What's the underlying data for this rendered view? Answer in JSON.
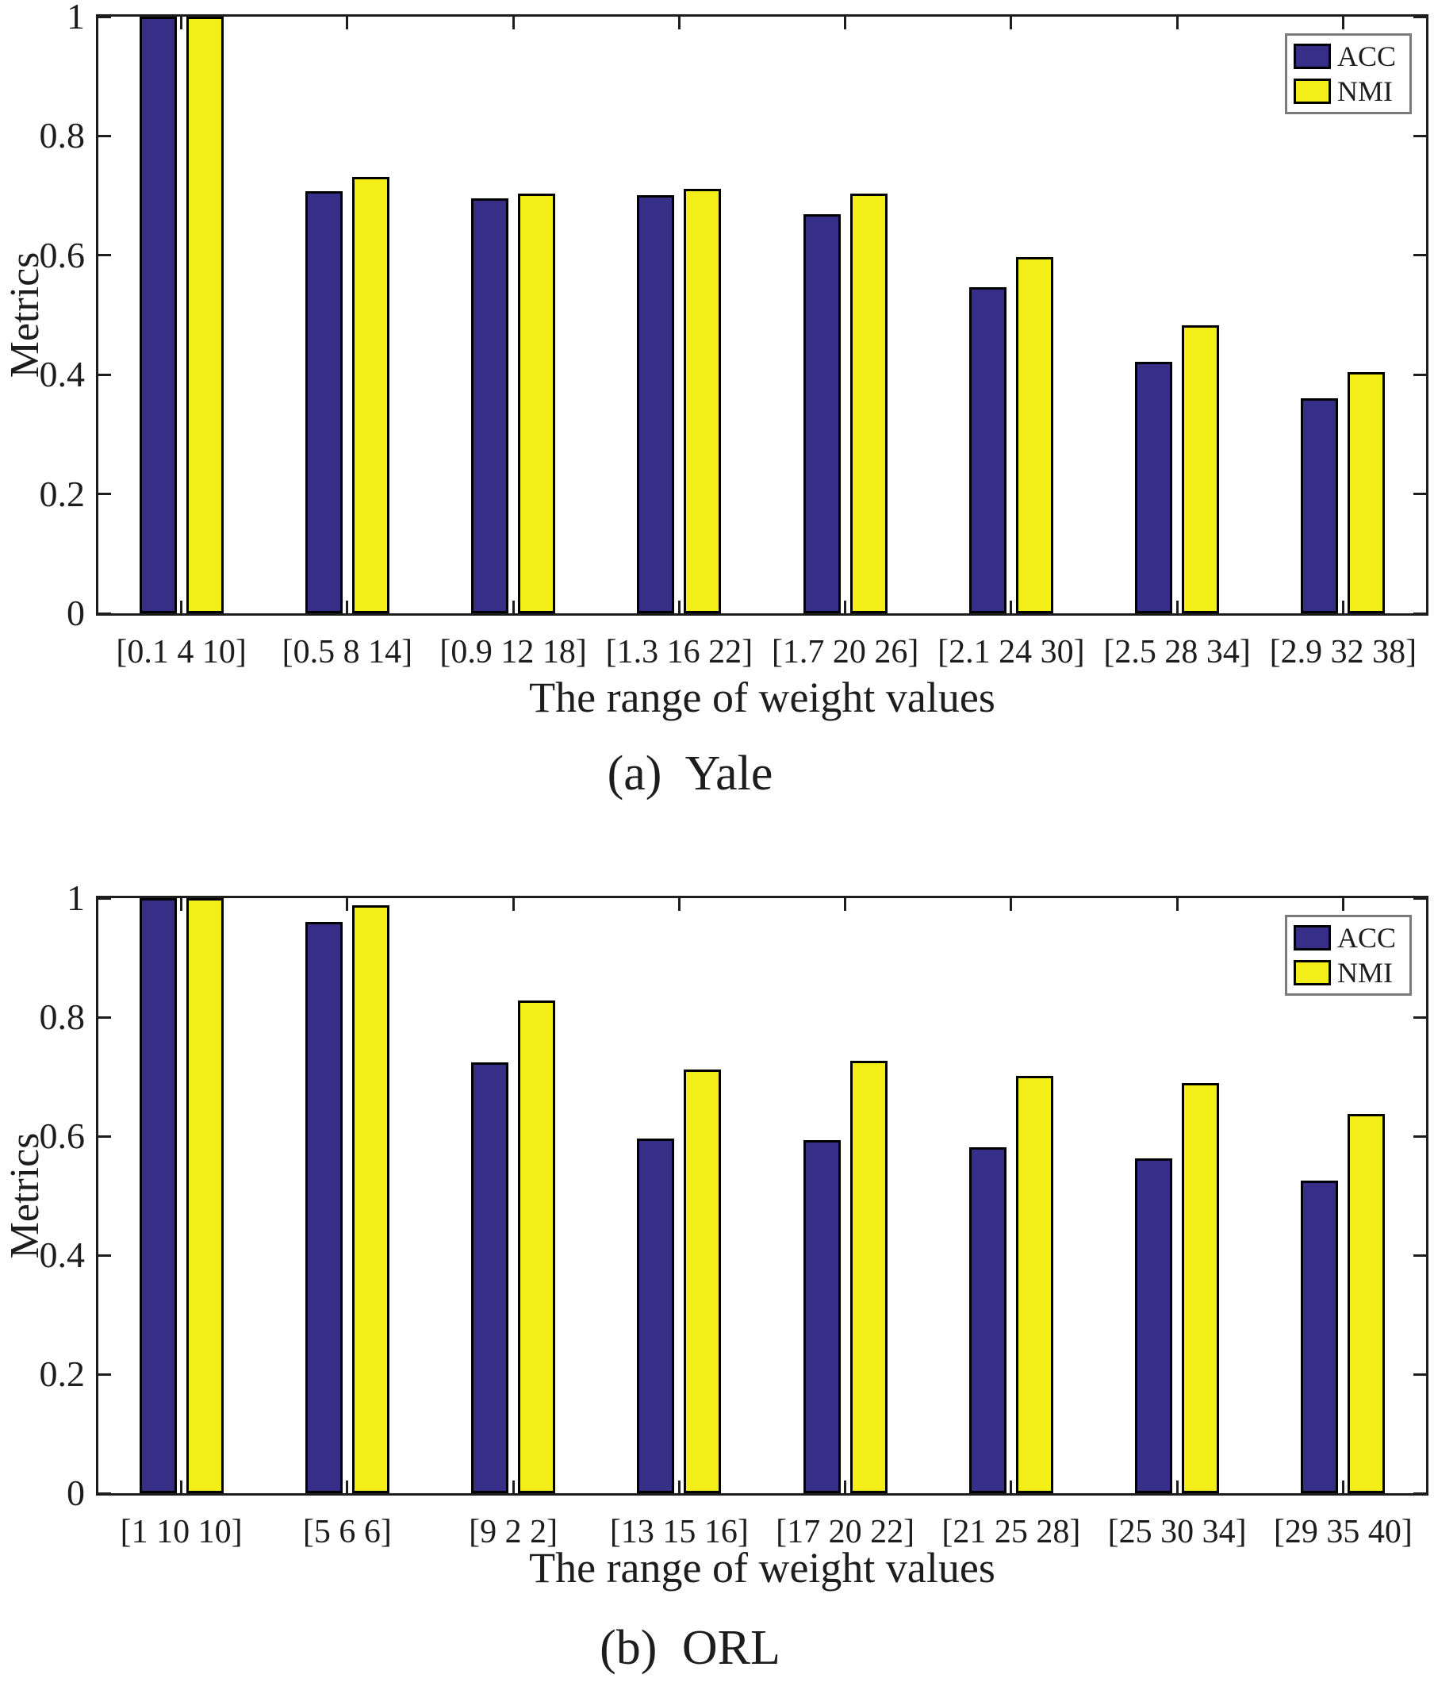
{
  "colors": {
    "acc": "#372F87",
    "nmi": "#F3EE18",
    "axis": "#1d1d1d",
    "bar_border": "#000000",
    "legend_border": "#7b7b7b",
    "background": "#ffffff"
  },
  "chart_data": [
    {
      "type": "bar",
      "title": "(a) Yale",
      "xlabel": "The range of weight values",
      "ylabel": "Metrics",
      "ylim": [
        0,
        1
      ],
      "yticks": [
        "0",
        "0.2",
        "0.4",
        "0.6",
        "0.8",
        "1"
      ],
      "grid": false,
      "legend_position": "top-right",
      "categories": [
        "[0.1 4 10]",
        "[0.5 8 14]",
        "[0.9 12 18]",
        "[1.3 16 22]",
        "[1.7 20 26]",
        "[2.1 24 30]",
        "[2.5 28 34]",
        "[2.9 32 38]"
      ],
      "series": [
        {
          "name": "ACC",
          "color": "#372F87",
          "values": [
            1.0,
            0.708,
            0.695,
            0.701,
            0.669,
            0.547,
            0.421,
            0.361
          ]
        },
        {
          "name": "NMI",
          "color": "#F3EE18",
          "values": [
            1.0,
            0.732,
            0.704,
            0.711,
            0.704,
            0.597,
            0.483,
            0.404
          ]
        }
      ]
    },
    {
      "type": "bar",
      "title": "(b) ORL",
      "xlabel": "The range of weight values",
      "ylabel": "Metrics",
      "ylim": [
        0,
        1
      ],
      "yticks": [
        "0",
        "0.2",
        "0.4",
        "0.6",
        "0.8",
        "1"
      ],
      "grid": false,
      "legend_position": "top-right",
      "categories": [
        "[1 10 10]",
        "[5 6 6]",
        "[9 2 2]",
        "[13 15 16]",
        "[17 20 22]",
        "[21 25 28]",
        "[25 30 34]",
        "[29 35 40]"
      ],
      "series": [
        {
          "name": "ACC",
          "color": "#372F87",
          "values": [
            1.0,
            0.96,
            0.724,
            0.596,
            0.594,
            0.582,
            0.563,
            0.526
          ]
        },
        {
          "name": "NMI",
          "color": "#F3EE18",
          "values": [
            1.0,
            0.988,
            0.828,
            0.712,
            0.727,
            0.702,
            0.689,
            0.638
          ]
        }
      ]
    }
  ]
}
